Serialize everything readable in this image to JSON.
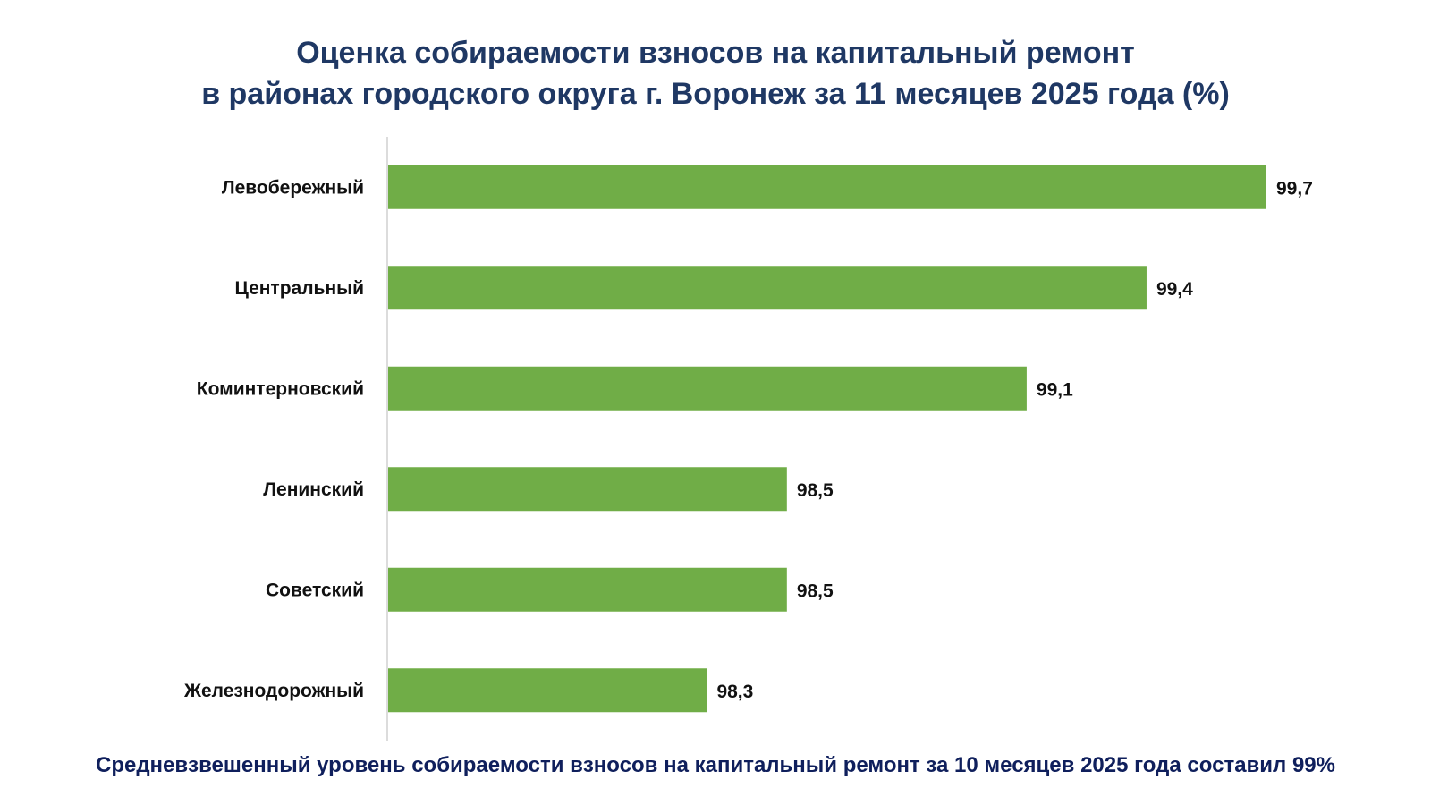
{
  "chart_data": {
    "type": "bar",
    "orientation": "horizontal",
    "title": "Оценка собираемости взносов на капитальный ремонт",
    "subtitle": "в районах городского округа г. Воронеж за 11 месяцев 2025 года (%)",
    "categories": [
      "Левобережный",
      "Центральный",
      "Коминтерновский",
      "Ленинский",
      "Советский",
      "Железнодорожный"
    ],
    "values": [
      99.7,
      99.4,
      99.1,
      98.5,
      98.5,
      98.3
    ],
    "value_labels": [
      "99,7",
      "99,4",
      "99,1",
      "98,5",
      "98,5",
      "98,3"
    ],
    "xlim": [
      97.5,
      99.7
    ],
    "grid": false,
    "legend": "none",
    "bar_color": "#70ad47",
    "footnote": "Средневзвешенный уровень собираемости взносов на капитальный ремонт за 10 месяцев 2025 года составил 99%"
  }
}
